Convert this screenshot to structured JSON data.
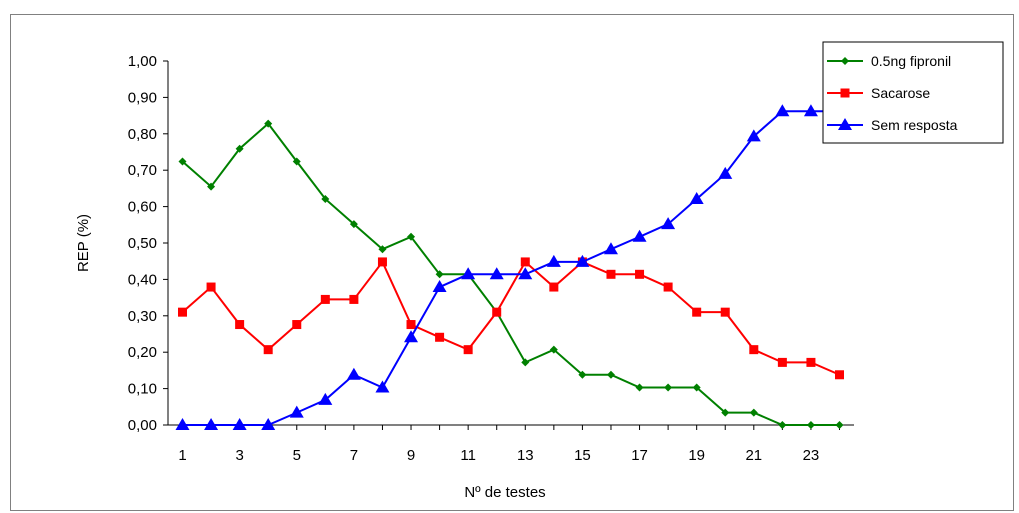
{
  "chart_data": {
    "type": "line",
    "title": "",
    "xlabel": "Nº de testes",
    "ylabel": "REP (%)",
    "ylim": [
      0,
      1
    ],
    "xlim": [
      1,
      24
    ],
    "y_ticks": [
      "0,00",
      "0,10",
      "0,20",
      "0,30",
      "0,40",
      "0,50",
      "0,60",
      "0,70",
      "0,80",
      "0,90",
      "1,00"
    ],
    "x_ticks": [
      "1",
      "3",
      "5",
      "7",
      "9",
      "11",
      "13",
      "15",
      "17",
      "19",
      "21",
      "23"
    ],
    "x": [
      1,
      2,
      3,
      4,
      5,
      6,
      7,
      8,
      9,
      10,
      11,
      12,
      13,
      14,
      15,
      16,
      17,
      18,
      19,
      20,
      21,
      22,
      23,
      24
    ],
    "grid": false,
    "legend_position": "top-right",
    "series": [
      {
        "name": "0.5ng fipronil",
        "color": "#008000",
        "marker": "diamond",
        "values": [
          0.724,
          0.655,
          0.759,
          0.828,
          0.724,
          0.621,
          0.552,
          0.483,
          0.517,
          0.414,
          0.414,
          0.31,
          0.172,
          0.207,
          0.138,
          0.138,
          0.103,
          0.103,
          0.103,
          0.034,
          0.034,
          0.0,
          0.0,
          0.0
        ]
      },
      {
        "name": "Sacarose",
        "color": "#ff0000",
        "marker": "square",
        "values": [
          0.31,
          0.379,
          0.276,
          0.207,
          0.276,
          0.345,
          0.345,
          0.448,
          0.276,
          0.241,
          0.207,
          0.31,
          0.448,
          0.379,
          0.448,
          0.414,
          0.414,
          0.379,
          0.31,
          0.31,
          0.207,
          0.172,
          0.172,
          0.138
        ]
      },
      {
        "name": "Sem resposta",
        "color": "#0000ff",
        "marker": "triangle",
        "values": [
          0.0,
          0.0,
          0.0,
          0.0,
          0.034,
          0.069,
          0.138,
          0.103,
          0.241,
          0.379,
          0.414,
          0.414,
          0.414,
          0.448,
          0.448,
          0.483,
          0.517,
          0.552,
          0.621,
          0.69,
          0.793,
          0.862,
          0.862,
          0.862
        ]
      }
    ]
  }
}
